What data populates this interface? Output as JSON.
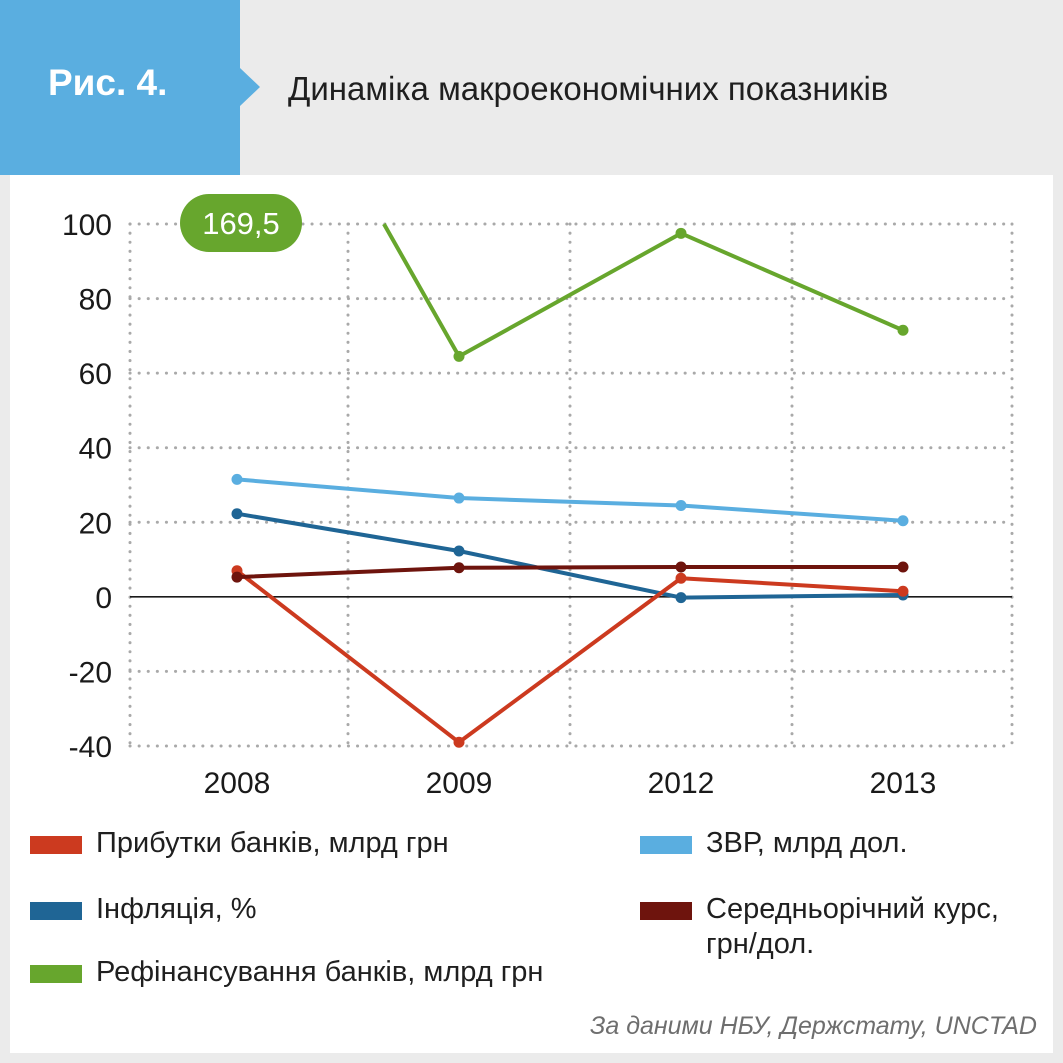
{
  "header": {
    "figure_label": "Рис. 4.",
    "title": "Динаміка макроекономічних показників"
  },
  "colors": {
    "header_bg": "#ebebeb",
    "tab_blue": "#5aaee0",
    "green": "#67a62d",
    "light_blue": "#5aaee0",
    "dark_blue": "#1f6595",
    "red": "#cc3a1f",
    "dark_red": "#6e140d"
  },
  "chart_data": {
    "type": "line",
    "categories": [
      "2008",
      "2009",
      "2012",
      "2013"
    ],
    "yticks": [
      "100",
      "80",
      "60",
      "40",
      "20",
      "0",
      "-20",
      "-40"
    ],
    "ylim": [
      -40,
      100
    ],
    "grid": true,
    "legend_position": "bottom",
    "series": [
      {
        "name": "Прибутки банків, млрд грн",
        "color": "#cc3a1f",
        "values": [
          7,
          -39,
          5,
          1.5
        ]
      },
      {
        "name": "Інфляція, %",
        "color": "#1f6595",
        "values": [
          22.3,
          12.3,
          -0.2,
          0.5
        ]
      },
      {
        "name": "Рефінансування банків, млрд грн",
        "color": "#67a62d",
        "values": [
          169.5,
          64.5,
          97.5,
          71.5
        ],
        "clip_label": "169,5"
      },
      {
        "name": "ЗВР, млрд дол.",
        "color": "#5aaee0",
        "values": [
          31.5,
          26.5,
          24.5,
          20.4
        ]
      },
      {
        "name": "Середньорічний курс, грн/дол.",
        "color": "#6e140d",
        "values": [
          5.3,
          7.8,
          8.0,
          8.0
        ]
      }
    ]
  },
  "legend": [
    {
      "label": "Прибутки банків, млрд грн",
      "color": "#cc3a1f"
    },
    {
      "label": "Інфляція, %",
      "color": "#1f6595"
    },
    {
      "label": "Рефінансування банків, млрд грн",
      "color": "#67a62d"
    },
    {
      "label": "ЗВР, млрд дол.",
      "color": "#5aaee0"
    },
    {
      "label_line1": "Середньорічний курс,",
      "label_line2": "грн/дол.",
      "color": "#6e140d"
    }
  ],
  "source": "За даними НБУ, Держстату, UNCTAD"
}
